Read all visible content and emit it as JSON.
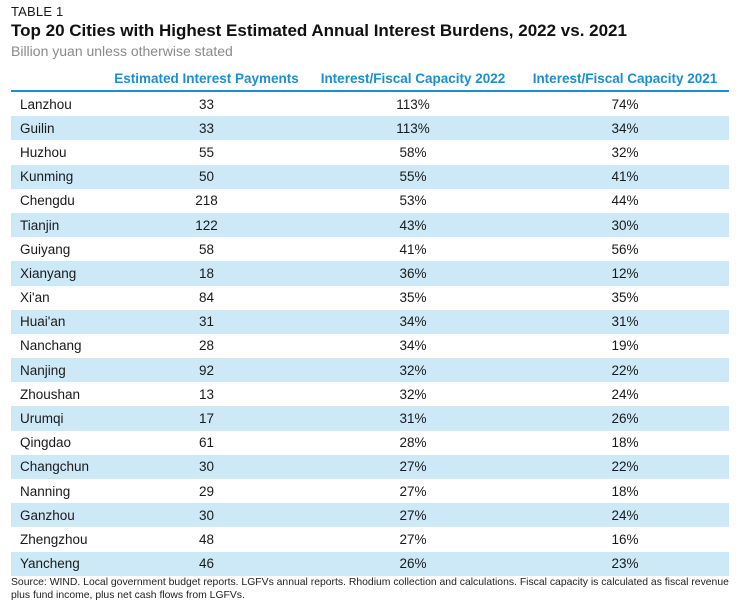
{
  "kicker": "TABLE 1",
  "title": "Top 20 Cities with Highest Estimated Annual Interest Burdens, 2022 vs. 2021",
  "subtitle": "Billion yuan unless otherwise stated",
  "columns": [
    "",
    "Estimated Interest Payments",
    "Interest/Fiscal Capacity 2022",
    "Interest/Fiscal Capacity 2021"
  ],
  "rows": [
    {
      "city": "Lanzhou",
      "payments": "33",
      "fc2022": "113%",
      "fc2021": "74%"
    },
    {
      "city": "Guilin",
      "payments": "33",
      "fc2022": "113%",
      "fc2021": "34%"
    },
    {
      "city": "Huzhou",
      "payments": "55",
      "fc2022": "58%",
      "fc2021": "32%"
    },
    {
      "city": "Kunming",
      "payments": "50",
      "fc2022": "55%",
      "fc2021": "41%"
    },
    {
      "city": "Chengdu",
      "payments": "218",
      "fc2022": "53%",
      "fc2021": "44%"
    },
    {
      "city": "Tianjin",
      "payments": "122",
      "fc2022": "43%",
      "fc2021": "30%"
    },
    {
      "city": "Guiyang",
      "payments": "58",
      "fc2022": "41%",
      "fc2021": "56%"
    },
    {
      "city": "Xianyang",
      "payments": "18",
      "fc2022": "36%",
      "fc2021": "12%"
    },
    {
      "city": "Xi'an",
      "payments": "84",
      "fc2022": "35%",
      "fc2021": "35%"
    },
    {
      "city": "Huai'an",
      "payments": "31",
      "fc2022": "34%",
      "fc2021": "31%"
    },
    {
      "city": "Nanchang",
      "payments": "28",
      "fc2022": "34%",
      "fc2021": "19%"
    },
    {
      "city": "Nanjing",
      "payments": "92",
      "fc2022": "32%",
      "fc2021": "22%"
    },
    {
      "city": "Zhoushan",
      "payments": "13",
      "fc2022": "32%",
      "fc2021": "24%"
    },
    {
      "city": "Urumqi",
      "payments": "17",
      "fc2022": "31%",
      "fc2021": "26%"
    },
    {
      "city": "Qingdao",
      "payments": "61",
      "fc2022": "28%",
      "fc2021": "18%"
    },
    {
      "city": "Changchun",
      "payments": "30",
      "fc2022": "27%",
      "fc2021": "22%"
    },
    {
      "city": "Nanning",
      "payments": "29",
      "fc2022": "27%",
      "fc2021": "18%"
    },
    {
      "city": "Ganzhou",
      "payments": "30",
      "fc2022": "27%",
      "fc2021": "24%"
    },
    {
      "city": "Zhengzhou",
      "payments": "48",
      "fc2022": "27%",
      "fc2021": "16%"
    },
    {
      "city": "Yancheng",
      "payments": "46",
      "fc2022": "26%",
      "fc2021": "23%"
    }
  ],
  "source": "Source: WIND. Local government budget reports. LGFVs annual reports. Rhodium collection and calculations.  Fiscal capacity is calculated as fiscal revenue plus fund income, plus net cash flows from LGFVs.",
  "colors": {
    "accent": "#1a8fd1",
    "row_alt": "#cde9f7"
  }
}
